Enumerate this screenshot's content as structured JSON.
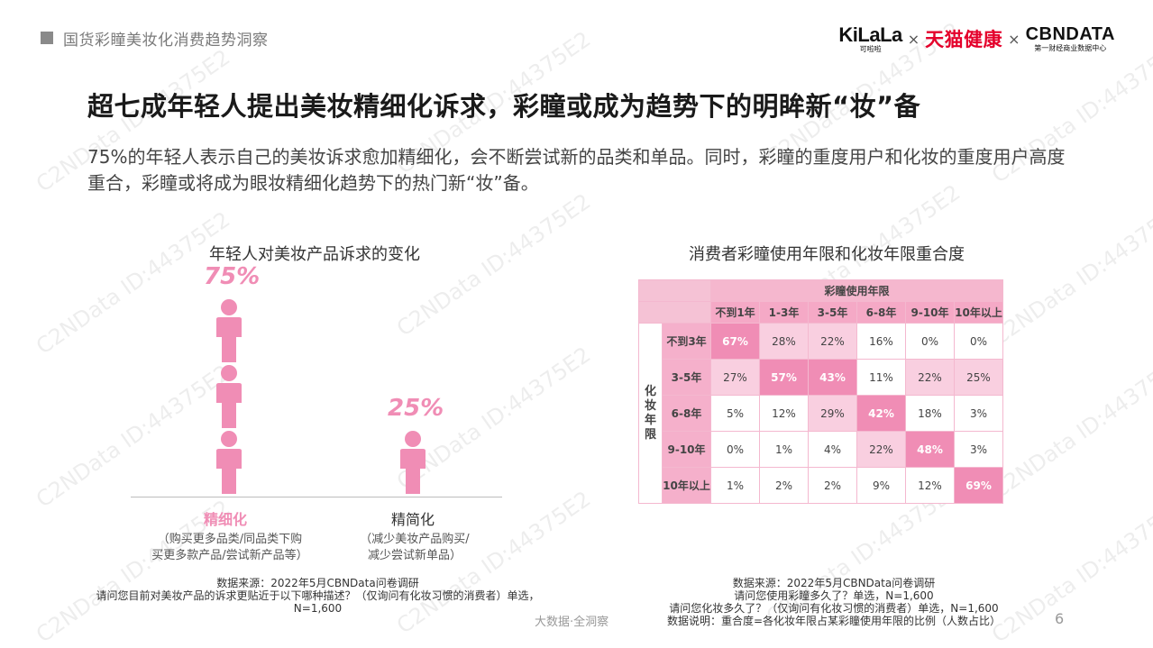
{
  "header": {
    "title": "国货彩瞳美妆化消费趋势洞察"
  },
  "logos": {
    "kilala": "KiLaLa",
    "kilala_sub": "可啦啦",
    "times": "×",
    "tmall": "天猫健康",
    "cbn": "CBNDATA",
    "cbn_sub": "第一财经商业数据中心"
  },
  "main_title": "超七成年轻人提出美妆精细化诉求，彩瞳或成为趋势下的明眸新“妆”备",
  "subtitle": "75%的年轻人表示自己的美妆诉求愈加精细化，会不断尝试新的品类和单品。同时，彩瞳的重度用户和化妆的重度用户高度重合，彩瞳或将成为眼妆精细化趋势下的热门新“妆”备。",
  "left_chart": {
    "title": "年轻人对美妆产品诉求的变化",
    "items": [
      {
        "label": "精细化",
        "pct_label": "75%",
        "desc_line1": "（购买更多品类/同品类下购",
        "desc_line2": "买更多款产品/尝试新产品等）"
      },
      {
        "label": "精简化",
        "pct_label": "25%",
        "desc_line1": "（减少美妆产品购买/",
        "desc_line2": "减少尝试新单品）"
      }
    ],
    "source_lines": [
      "数据来源：2022年5月CBNData问卷调研",
      "请问您目前对美妆产品的诉求更贴近于以下哪种描述？（仅询问有化妆习惯的消费者）单选，",
      "N=1,600"
    ]
  },
  "right_chart": {
    "title": "消费者彩瞳使用年限和化妆年限重合度",
    "col_group_label": "彩瞳使用年限",
    "row_group_label": "化妆年限",
    "source_lines": [
      "数据来源：2022年5月CBNData问卷调研",
      "请问您使用彩瞳多久了？单选，N=1,600",
      "请问您化妆多久了？（仅询问有化妆习惯的消费者）单选，N=1,600",
      "数据说明：重合度=各化妆年限占某彩瞳使用年限的比例（人数占比）"
    ]
  },
  "chart_data": [
    {
      "type": "bar",
      "title": "年轻人对美妆产品诉求的变化",
      "categories": [
        "精细化",
        "精简化"
      ],
      "values": [
        75,
        25
      ],
      "unit": "%",
      "colors": {
        "accent": "#f08db5",
        "second": "#f08db5"
      }
    },
    {
      "type": "heatmap",
      "title": "消费者彩瞳使用年限和化妆年限重合度",
      "xlabel": "彩瞳使用年限",
      "ylabel": "化妆年限",
      "x_categories": [
        "不到1年",
        "1-3年",
        "3-5年",
        "6-8年",
        "9-10年",
        "10年以上"
      ],
      "y_categories": [
        "不到3年",
        "3-5年",
        "6-8年",
        "9-10年",
        "10年以上"
      ],
      "values": [
        [
          67,
          28,
          22,
          16,
          0,
          0
        ],
        [
          27,
          57,
          43,
          11,
          22,
          25
        ],
        [
          5,
          12,
          29,
          42,
          18,
          3
        ],
        [
          0,
          1,
          4,
          22,
          48,
          3
        ],
        [
          1,
          2,
          2,
          9,
          12,
          69
        ]
      ],
      "unit": "%",
      "colors": {
        "high": "#f08db5",
        "mid": "#f9cbdc",
        "low": "#ffffff"
      }
    }
  ],
  "footer": {
    "brand": "大数据·全洞察",
    "page_number": "6"
  },
  "watermark": "C2NData ID:44375E2"
}
